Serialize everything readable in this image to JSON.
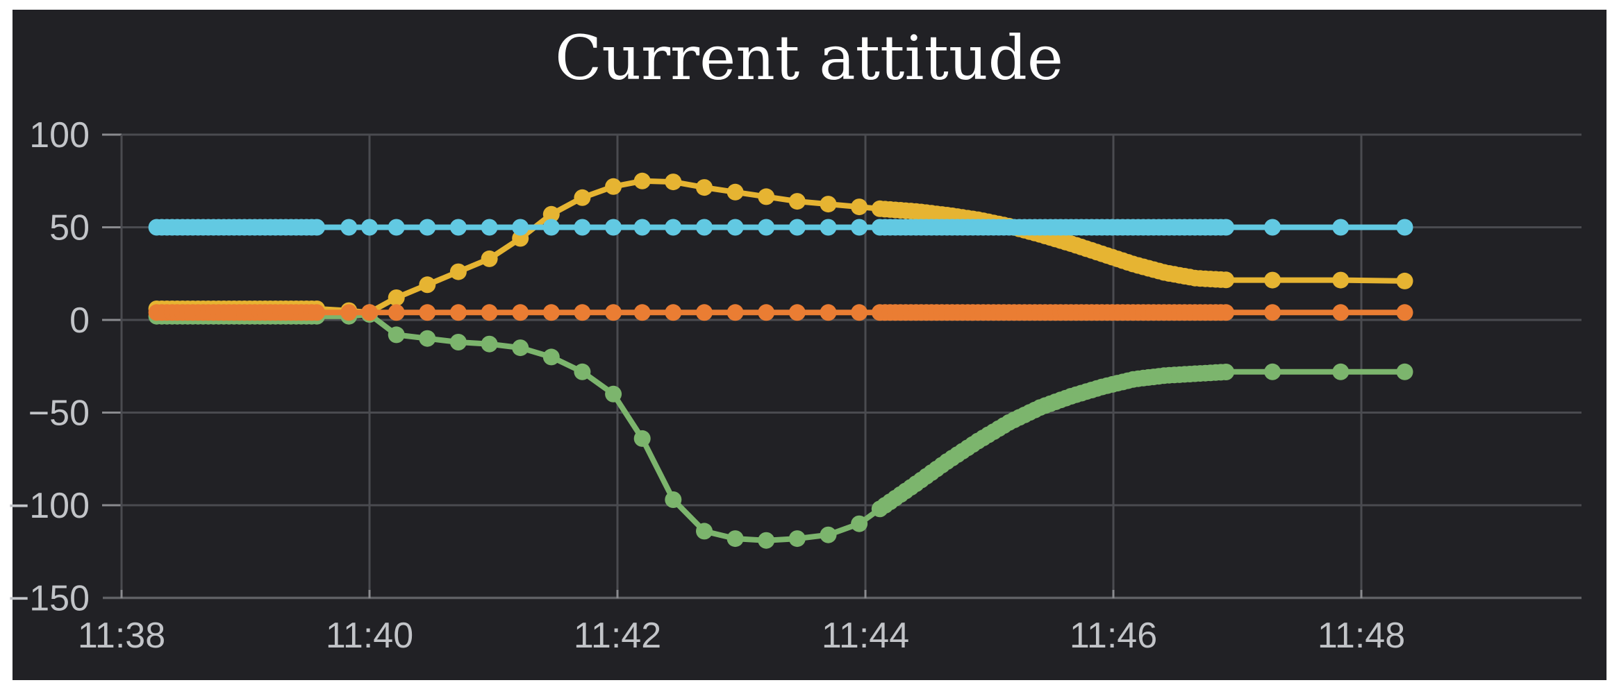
{
  "page": {
    "background": "#ffffff"
  },
  "panel": {
    "background": "#212125",
    "grid_color": "#4a4b50",
    "axis_line_color": "#606165",
    "tick_color": "#8a8b8f",
    "label_color": "#c2c4c8",
    "title_color": "#ffffff"
  },
  "chart_data": {
    "type": "line",
    "title": "Current attitude",
    "xlabel": "",
    "ylabel": "",
    "grid": true,
    "legend": "none",
    "x_unit": "time (hh:mm), seconds offset from 11:38:00",
    "x_domain_sec": [
      0,
      707
    ],
    "ylim": [
      -150,
      100
    ],
    "x_ticks": [
      {
        "sec": 0,
        "label": "11:38"
      },
      {
        "sec": 120,
        "label": "11:40"
      },
      {
        "sec": 240,
        "label": "11:42"
      },
      {
        "sec": 360,
        "label": "11:44"
      },
      {
        "sec": 480,
        "label": "11:46"
      },
      {
        "sec": 600,
        "label": "11:48"
      }
    ],
    "y_ticks": [
      {
        "value": 100,
        "label": "100"
      },
      {
        "value": 50,
        "label": "50"
      },
      {
        "value": 0,
        "label": "0"
      },
      {
        "value": -50,
        "label": "−50"
      },
      {
        "value": -100,
        "label": "−100"
      },
      {
        "value": -150,
        "label": "−150"
      }
    ],
    "dense_sample_ranges_sec": [
      [
        17,
        95
      ],
      [
        367,
        536
      ]
    ],
    "series": [
      {
        "id": "green-series",
        "color": "#7cb56d",
        "points": [
          [
            17,
            2
          ],
          [
            45,
            2
          ],
          [
            70,
            2
          ],
          [
            95,
            2
          ],
          [
            110,
            2
          ],
          [
            120,
            3
          ],
          [
            133,
            -8
          ],
          [
            148,
            -10
          ],
          [
            163,
            -12
          ],
          [
            178,
            -13
          ],
          [
            193,
            -15
          ],
          [
            208,
            -20
          ],
          [
            223,
            -28
          ],
          [
            238,
            -40
          ],
          [
            252,
            -64
          ],
          [
            267,
            -97
          ],
          [
            282,
            -114
          ],
          [
            297,
            -118
          ],
          [
            312,
            -119
          ],
          [
            327,
            -118
          ],
          [
            342,
            -116
          ],
          [
            357,
            -110
          ],
          [
            367,
            -102
          ],
          [
            385,
            -88
          ],
          [
            400,
            -76
          ],
          [
            415,
            -65
          ],
          [
            430,
            -55
          ],
          [
            445,
            -47
          ],
          [
            460,
            -41
          ],
          [
            475,
            -36
          ],
          [
            490,
            -32
          ],
          [
            505,
            -30
          ],
          [
            520,
            -29
          ],
          [
            536,
            -28
          ],
          [
            557,
            -28
          ],
          [
            590,
            -28
          ],
          [
            621,
            -28
          ]
        ]
      },
      {
        "id": "yellow-series",
        "color": "#e6b432",
        "points": [
          [
            17,
            6
          ],
          [
            45,
            6
          ],
          [
            70,
            6
          ],
          [
            95,
            6
          ],
          [
            110,
            5
          ],
          [
            120,
            4
          ],
          [
            133,
            12
          ],
          [
            148,
            19
          ],
          [
            163,
            26
          ],
          [
            178,
            33
          ],
          [
            193,
            44
          ],
          [
            208,
            57
          ],
          [
            223,
            66
          ],
          [
            238,
            72
          ],
          [
            252,
            75
          ],
          [
            267,
            74.5
          ],
          [
            282,
            71.5
          ],
          [
            297,
            69
          ],
          [
            312,
            66.5
          ],
          [
            327,
            64
          ],
          [
            342,
            62.5
          ],
          [
            357,
            61
          ],
          [
            367,
            60
          ],
          [
            385,
            58.5
          ],
          [
            400,
            56.5
          ],
          [
            415,
            54
          ],
          [
            430,
            50.5
          ],
          [
            445,
            46
          ],
          [
            460,
            41
          ],
          [
            475,
            35.5
          ],
          [
            490,
            30
          ],
          [
            505,
            25.5
          ],
          [
            520,
            22.5
          ],
          [
            536,
            21.5
          ],
          [
            557,
            21.5
          ],
          [
            590,
            21.5
          ],
          [
            621,
            21
          ]
        ]
      },
      {
        "id": "cyan-series",
        "color": "#62c9e2",
        "points": [
          [
            17,
            50
          ],
          [
            45,
            50
          ],
          [
            70,
            50
          ],
          [
            95,
            50
          ],
          [
            110,
            50
          ],
          [
            120,
            50
          ],
          [
            133,
            50
          ],
          [
            148,
            50
          ],
          [
            163,
            50
          ],
          [
            178,
            50
          ],
          [
            193,
            50
          ],
          [
            208,
            50
          ],
          [
            223,
            50
          ],
          [
            238,
            50
          ],
          [
            252,
            50
          ],
          [
            267,
            50
          ],
          [
            282,
            50
          ],
          [
            297,
            50
          ],
          [
            312,
            50
          ],
          [
            327,
            50
          ],
          [
            342,
            50
          ],
          [
            357,
            50
          ],
          [
            367,
            50
          ],
          [
            400,
            50
          ],
          [
            440,
            50
          ],
          [
            480,
            50
          ],
          [
            510,
            50
          ],
          [
            536,
            50
          ],
          [
            557,
            50
          ],
          [
            590,
            50
          ],
          [
            621,
            50
          ]
        ]
      },
      {
        "id": "orange-series",
        "color": "#ea7d33",
        "points": [
          [
            17,
            4
          ],
          [
            45,
            4
          ],
          [
            70,
            4
          ],
          [
            95,
            4
          ],
          [
            110,
            4
          ],
          [
            120,
            4
          ],
          [
            133,
            4
          ],
          [
            148,
            4
          ],
          [
            163,
            4
          ],
          [
            178,
            4
          ],
          [
            193,
            4
          ],
          [
            208,
            4
          ],
          [
            223,
            4
          ],
          [
            238,
            4
          ],
          [
            252,
            4
          ],
          [
            267,
            4
          ],
          [
            282,
            4
          ],
          [
            297,
            4
          ],
          [
            312,
            4
          ],
          [
            327,
            4
          ],
          [
            342,
            4
          ],
          [
            357,
            4
          ],
          [
            367,
            4
          ],
          [
            400,
            4
          ],
          [
            440,
            4
          ],
          [
            480,
            4
          ],
          [
            510,
            4
          ],
          [
            536,
            4
          ],
          [
            557,
            4
          ],
          [
            590,
            4
          ],
          [
            621,
            4
          ]
        ]
      }
    ]
  }
}
